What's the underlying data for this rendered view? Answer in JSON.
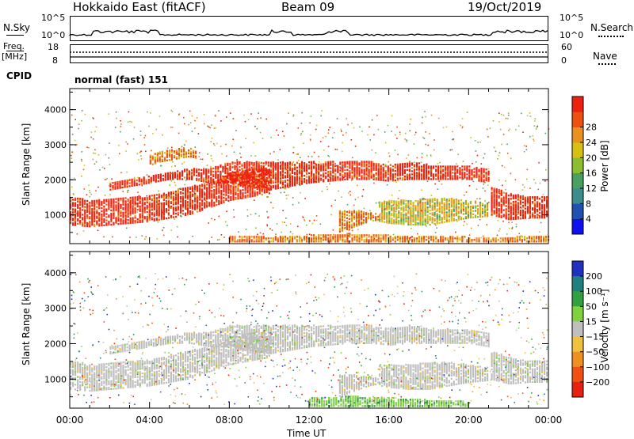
{
  "header": {
    "station": "Hokkaido East (fitACF)",
    "beam": "Beam 09",
    "date": "19/Oct/2019"
  },
  "top_panel": {
    "left_label": "N.Sky",
    "right_label": "N.Search",
    "ticks_left": [
      "10^5",
      "10^0"
    ],
    "ticks_right": [
      "10^5",
      "10^0"
    ]
  },
  "freq_panel": {
    "left_label_1": "Freq.",
    "left_label_2": "[MHz]",
    "right_label": "Nave",
    "left_ticks": [
      "18",
      "8"
    ],
    "right_ticks": [
      "60",
      "0"
    ]
  },
  "cpid": {
    "label": "CPID",
    "value": "normal (fast) 151"
  },
  "chart_data": [
    {
      "type": "heatmap",
      "title": "",
      "xlabel": "Time UT",
      "ylabel": "Slant Range [km]",
      "xlim": [
        0,
        24
      ],
      "ylim": [
        180,
        4600
      ],
      "x_ticks": [
        "00:00",
        "04:00",
        "08:00",
        "12:00",
        "16:00",
        "20:00",
        "00:00"
      ],
      "y_ticks": [
        "1000",
        "2000",
        "3000",
        "4000"
      ],
      "colorbar": {
        "label": "Power [dB]",
        "ticks": [
          "4",
          "8",
          "12",
          "16",
          "20",
          "24",
          "28"
        ],
        "colors": [
          "#1010ee",
          "#2050b0",
          "#3c8c8c",
          "#4aa060",
          "#8cbe30",
          "#d8c010",
          "#e89020",
          "#ee5010",
          "#ee2010"
        ]
      },
      "bands": [
        {
          "t": [
            0,
            1,
            2,
            3,
            4,
            5,
            6,
            7,
            7.5,
            8,
            9,
            10,
            11,
            12,
            13,
            14,
            15,
            16,
            17,
            18,
            19,
            20,
            21,
            22,
            23,
            24
          ],
          "lower": [
            700,
            650,
            700,
            750,
            800,
            900,
            1000,
            1200,
            1300,
            1400,
            1500,
            1600,
            null,
            null,
            null,
            null,
            null,
            null,
            null,
            null,
            null,
            null,
            1000,
            850,
            900,
            900
          ],
          "upper": [
            1500,
            1400,
            1450,
            1500,
            1550,
            1650,
            1800,
            1900,
            2000,
            2200,
            2300,
            2300,
            null,
            null,
            null,
            null,
            null,
            null,
            null,
            null,
            null,
            null,
            1800,
            1600,
            1500,
            1500
          ],
          "level": 28
        },
        {
          "t": [
            2,
            3,
            4,
            5,
            6,
            7,
            8,
            9,
            10,
            11,
            12,
            13,
            14,
            15,
            16,
            17,
            18,
            19,
            20,
            21
          ],
          "lower": [
            1700,
            1800,
            1900,
            2000,
            2000,
            1900,
            1900,
            1800,
            1700,
            1800,
            1900,
            1950,
            2000,
            2000,
            1950,
            2000,
            2000,
            2000,
            2000,
            1900
          ],
          "upper": [
            1900,
            2000,
            2100,
            2200,
            2300,
            2300,
            2500,
            2500,
            2500,
            2500,
            2500,
            2500,
            2500,
            2500,
            2400,
            2500,
            2400,
            2400,
            2400,
            2300
          ],
          "level": 26
        },
        {
          "t": [
            4,
            4.5,
            5,
            5.5,
            6,
            6.3
          ],
          "lower": [
            2400,
            2500,
            2550,
            2600,
            2650,
            2600
          ],
          "upper": [
            2700,
            2800,
            2850,
            2900,
            2900,
            2800
          ],
          "level": 24
        },
        {
          "t": [
            13.5,
            14,
            14.5,
            15,
            15.5
          ],
          "lower": [
            500,
            600,
            700,
            800,
            850
          ],
          "upper": [
            1100,
            1100,
            1100,
            1050,
            1000
          ],
          "level": 24
        },
        {
          "t": [
            15.5,
            16,
            17,
            18,
            19,
            20,
            21
          ],
          "lower": [
            800,
            750,
            700,
            700,
            800,
            900,
            950
          ],
          "upper": [
            1350,
            1400,
            1400,
            1450,
            1450,
            1400,
            1300
          ],
          "level": 20
        },
        {
          "t": [
            8,
            10,
            12,
            14,
            16,
            18,
            20,
            22,
            24
          ],
          "lower": [
            220,
            220,
            220,
            220,
            220,
            220,
            220,
            220,
            220
          ],
          "upper": [
            400,
            350,
            400,
            450,
            400,
            400,
            350,
            350,
            400
          ],
          "level": 24
        }
      ]
    },
    {
      "type": "heatmap",
      "title": "",
      "xlabel": "Time UT",
      "ylabel": "Slant Range [km]",
      "xlim": [
        0,
        24
      ],
      "ylim": [
        180,
        4600
      ],
      "x_ticks": [
        "00:00",
        "04:00",
        "08:00",
        "12:00",
        "16:00",
        "20:00",
        "00:00"
      ],
      "y_ticks": [
        "1000",
        "2000",
        "3000",
        "4000"
      ],
      "colorbar": {
        "label": "Velocity [m s⁻¹]",
        "ticks": [
          "200",
          "100",
          "50",
          "15",
          "−15",
          "−50",
          "−100",
          "−200"
        ],
        "colors": [
          "#2030c0",
          "#208080",
          "#30a040",
          "#80d040",
          "#bfbfbf",
          "#f0c040",
          "#f09020",
          "#f05010",
          "#e82010"
        ]
      },
      "bands": [
        {
          "t": [
            0,
            1,
            2,
            3,
            4,
            5,
            6,
            7,
            7.5,
            8,
            9,
            10,
            11,
            12,
            13,
            14,
            15,
            16,
            17,
            18,
            19,
            20,
            21,
            22,
            23,
            24
          ],
          "lower": [
            700,
            650,
            700,
            750,
            800,
            900,
            1000,
            1200,
            1300,
            1400,
            1500,
            1600,
            null,
            null,
            null,
            null,
            null,
            null,
            null,
            null,
            null,
            null,
            1000,
            850,
            900,
            900
          ],
          "upper": [
            1500,
            1400,
            1450,
            1500,
            1550,
            1650,
            1800,
            1900,
            2000,
            2200,
            2300,
            2300,
            null,
            null,
            null,
            null,
            null,
            null,
            null,
            null,
            null,
            null,
            1800,
            1600,
            1500,
            1500
          ],
          "level": 0
        },
        {
          "t": [
            2,
            3,
            4,
            5,
            6,
            7,
            8,
            9,
            10,
            11,
            12,
            13,
            14,
            15,
            16,
            17,
            18,
            19,
            20,
            21
          ],
          "lower": [
            1700,
            1800,
            1900,
            2000,
            2000,
            1900,
            1900,
            1800,
            1700,
            1800,
            1900,
            1950,
            2000,
            2000,
            1950,
            2000,
            2000,
            2000,
            2000,
            1900
          ],
          "upper": [
            1900,
            2000,
            2100,
            2200,
            2300,
            2300,
            2500,
            2500,
            2500,
            2500,
            2500,
            2500,
            2500,
            2500,
            2400,
            2500,
            2400,
            2400,
            2400,
            2300
          ],
          "level": 0
        },
        {
          "t": [
            13.5,
            14,
            14.5,
            15,
            15.5
          ],
          "lower": [
            500,
            600,
            700,
            800,
            850
          ],
          "upper": [
            1100,
            1100,
            1100,
            1050,
            1000
          ],
          "level": 0
        },
        {
          "t": [
            15.5,
            16,
            17,
            18,
            19,
            20,
            21
          ],
          "lower": [
            800,
            750,
            700,
            700,
            800,
            900,
            950
          ],
          "upper": [
            1350,
            1400,
            1400,
            1450,
            1450,
            1400,
            1300
          ],
          "level": 0
        },
        {
          "t": [
            12,
            14,
            16,
            18,
            20
          ],
          "lower": [
            220,
            220,
            220,
            220,
            220
          ],
          "upper": [
            450,
            500,
            450,
            400,
            350
          ],
          "level": 40
        }
      ]
    }
  ]
}
